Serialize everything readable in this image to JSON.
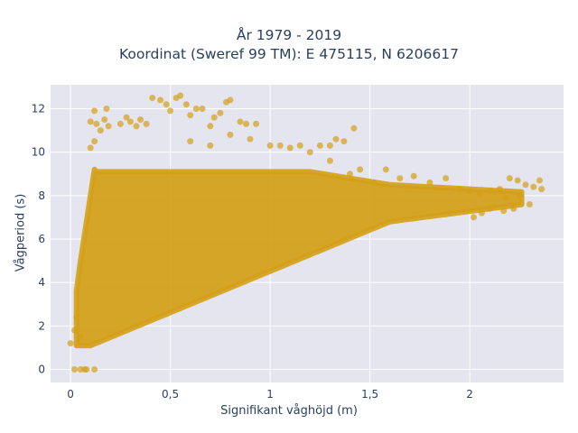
{
  "chart_data": {
    "type": "scatter",
    "title_lines": [
      "År 1979 - 2019",
      "Koordinat (Sweref 99 TM): E 475115, N 6206617"
    ],
    "xlabel": "Signifikant våghöjd (m)",
    "ylabel": "Vågperiod (s)",
    "xlim": [
      -0.1,
      2.47
    ],
    "ylim": [
      -0.6,
      13.1
    ],
    "x_ticks": [
      0,
      0.5,
      1,
      1.5,
      2
    ],
    "x_tick_labels": [
      "0",
      "0,5",
      "1",
      "1,5",
      "2"
    ],
    "y_ticks": [
      0,
      2,
      4,
      6,
      8,
      10,
      12
    ],
    "y_tick_labels": [
      "0",
      "2",
      "4",
      "6",
      "8",
      "10",
      "12"
    ],
    "grid": true,
    "legend": "none",
    "marker_color": "#D4A017",
    "marker_opacity": 0.7,
    "plot_background": "#E5E5F0",
    "points": [
      [
        0.02,
        0.0
      ],
      [
        0.05,
        0.0
      ],
      [
        0.07,
        0.0
      ],
      [
        0.08,
        0.0
      ],
      [
        0.12,
        0.0
      ],
      [
        0.0,
        1.2
      ],
      [
        0.02,
        1.8
      ],
      [
        0.03,
        2.4
      ],
      [
        0.05,
        1.5
      ],
      [
        0.1,
        10.2
      ],
      [
        0.12,
        10.5
      ],
      [
        0.15,
        11.0
      ],
      [
        0.1,
        11.4
      ],
      [
        0.12,
        11.9
      ],
      [
        0.13,
        11.3
      ],
      [
        0.17,
        11.5
      ],
      [
        0.18,
        12.0
      ],
      [
        0.19,
        11.2
      ],
      [
        0.25,
        11.3
      ],
      [
        0.28,
        11.6
      ],
      [
        0.3,
        11.4
      ],
      [
        0.33,
        11.2
      ],
      [
        0.35,
        11.5
      ],
      [
        0.38,
        11.3
      ],
      [
        0.41,
        12.5
      ],
      [
        0.45,
        12.4
      ],
      [
        0.48,
        12.2
      ],
      [
        0.5,
        11.9
      ],
      [
        0.53,
        12.5
      ],
      [
        0.55,
        12.6
      ],
      [
        0.58,
        12.2
      ],
      [
        0.6,
        11.7
      ],
      [
        0.63,
        12.0
      ],
      [
        0.66,
        12.0
      ],
      [
        0.7,
        11.2
      ],
      [
        0.72,
        11.6
      ],
      [
        0.75,
        11.8
      ],
      [
        0.78,
        12.3
      ],
      [
        0.8,
        12.4
      ],
      [
        0.85,
        11.4
      ],
      [
        0.88,
        11.3
      ],
      [
        0.93,
        11.3
      ],
      [
        0.6,
        10.5
      ],
      [
        0.7,
        10.3
      ],
      [
        0.8,
        10.8
      ],
      [
        0.9,
        10.6
      ],
      [
        1.0,
        10.3
      ],
      [
        1.05,
        10.3
      ],
      [
        1.1,
        10.2
      ],
      [
        1.15,
        10.3
      ],
      [
        1.2,
        10.0
      ],
      [
        1.25,
        10.3
      ],
      [
        1.3,
        10.3
      ],
      [
        1.33,
        10.6
      ],
      [
        1.37,
        10.5
      ],
      [
        1.42,
        11.1
      ],
      [
        1.3,
        9.6
      ],
      [
        1.4,
        9.0
      ],
      [
        1.45,
        9.2
      ],
      [
        1.52,
        8.6
      ],
      [
        1.58,
        9.2
      ],
      [
        1.65,
        8.8
      ],
      [
        1.72,
        8.9
      ],
      [
        1.8,
        8.6
      ],
      [
        1.88,
        8.8
      ],
      [
        1.95,
        8.3
      ],
      [
        2.0,
        8.2
      ],
      [
        2.05,
        8.1
      ],
      [
        2.1,
        8.2
      ],
      [
        2.15,
        8.3
      ],
      [
        2.2,
        8.8
      ],
      [
        2.24,
        8.7
      ],
      [
        2.28,
        8.5
      ],
      [
        2.32,
        8.4
      ],
      [
        2.35,
        8.7
      ],
      [
        2.36,
        8.3
      ],
      [
        2.18,
        7.9
      ],
      [
        2.25,
        8.0
      ],
      [
        2.12,
        7.5
      ],
      [
        2.22,
        7.4
      ],
      [
        2.3,
        7.6
      ],
      [
        2.06,
        7.2
      ],
      [
        2.1,
        7.4
      ],
      [
        2.17,
        7.3
      ],
      [
        2.02,
        7.0
      ]
    ]
  }
}
